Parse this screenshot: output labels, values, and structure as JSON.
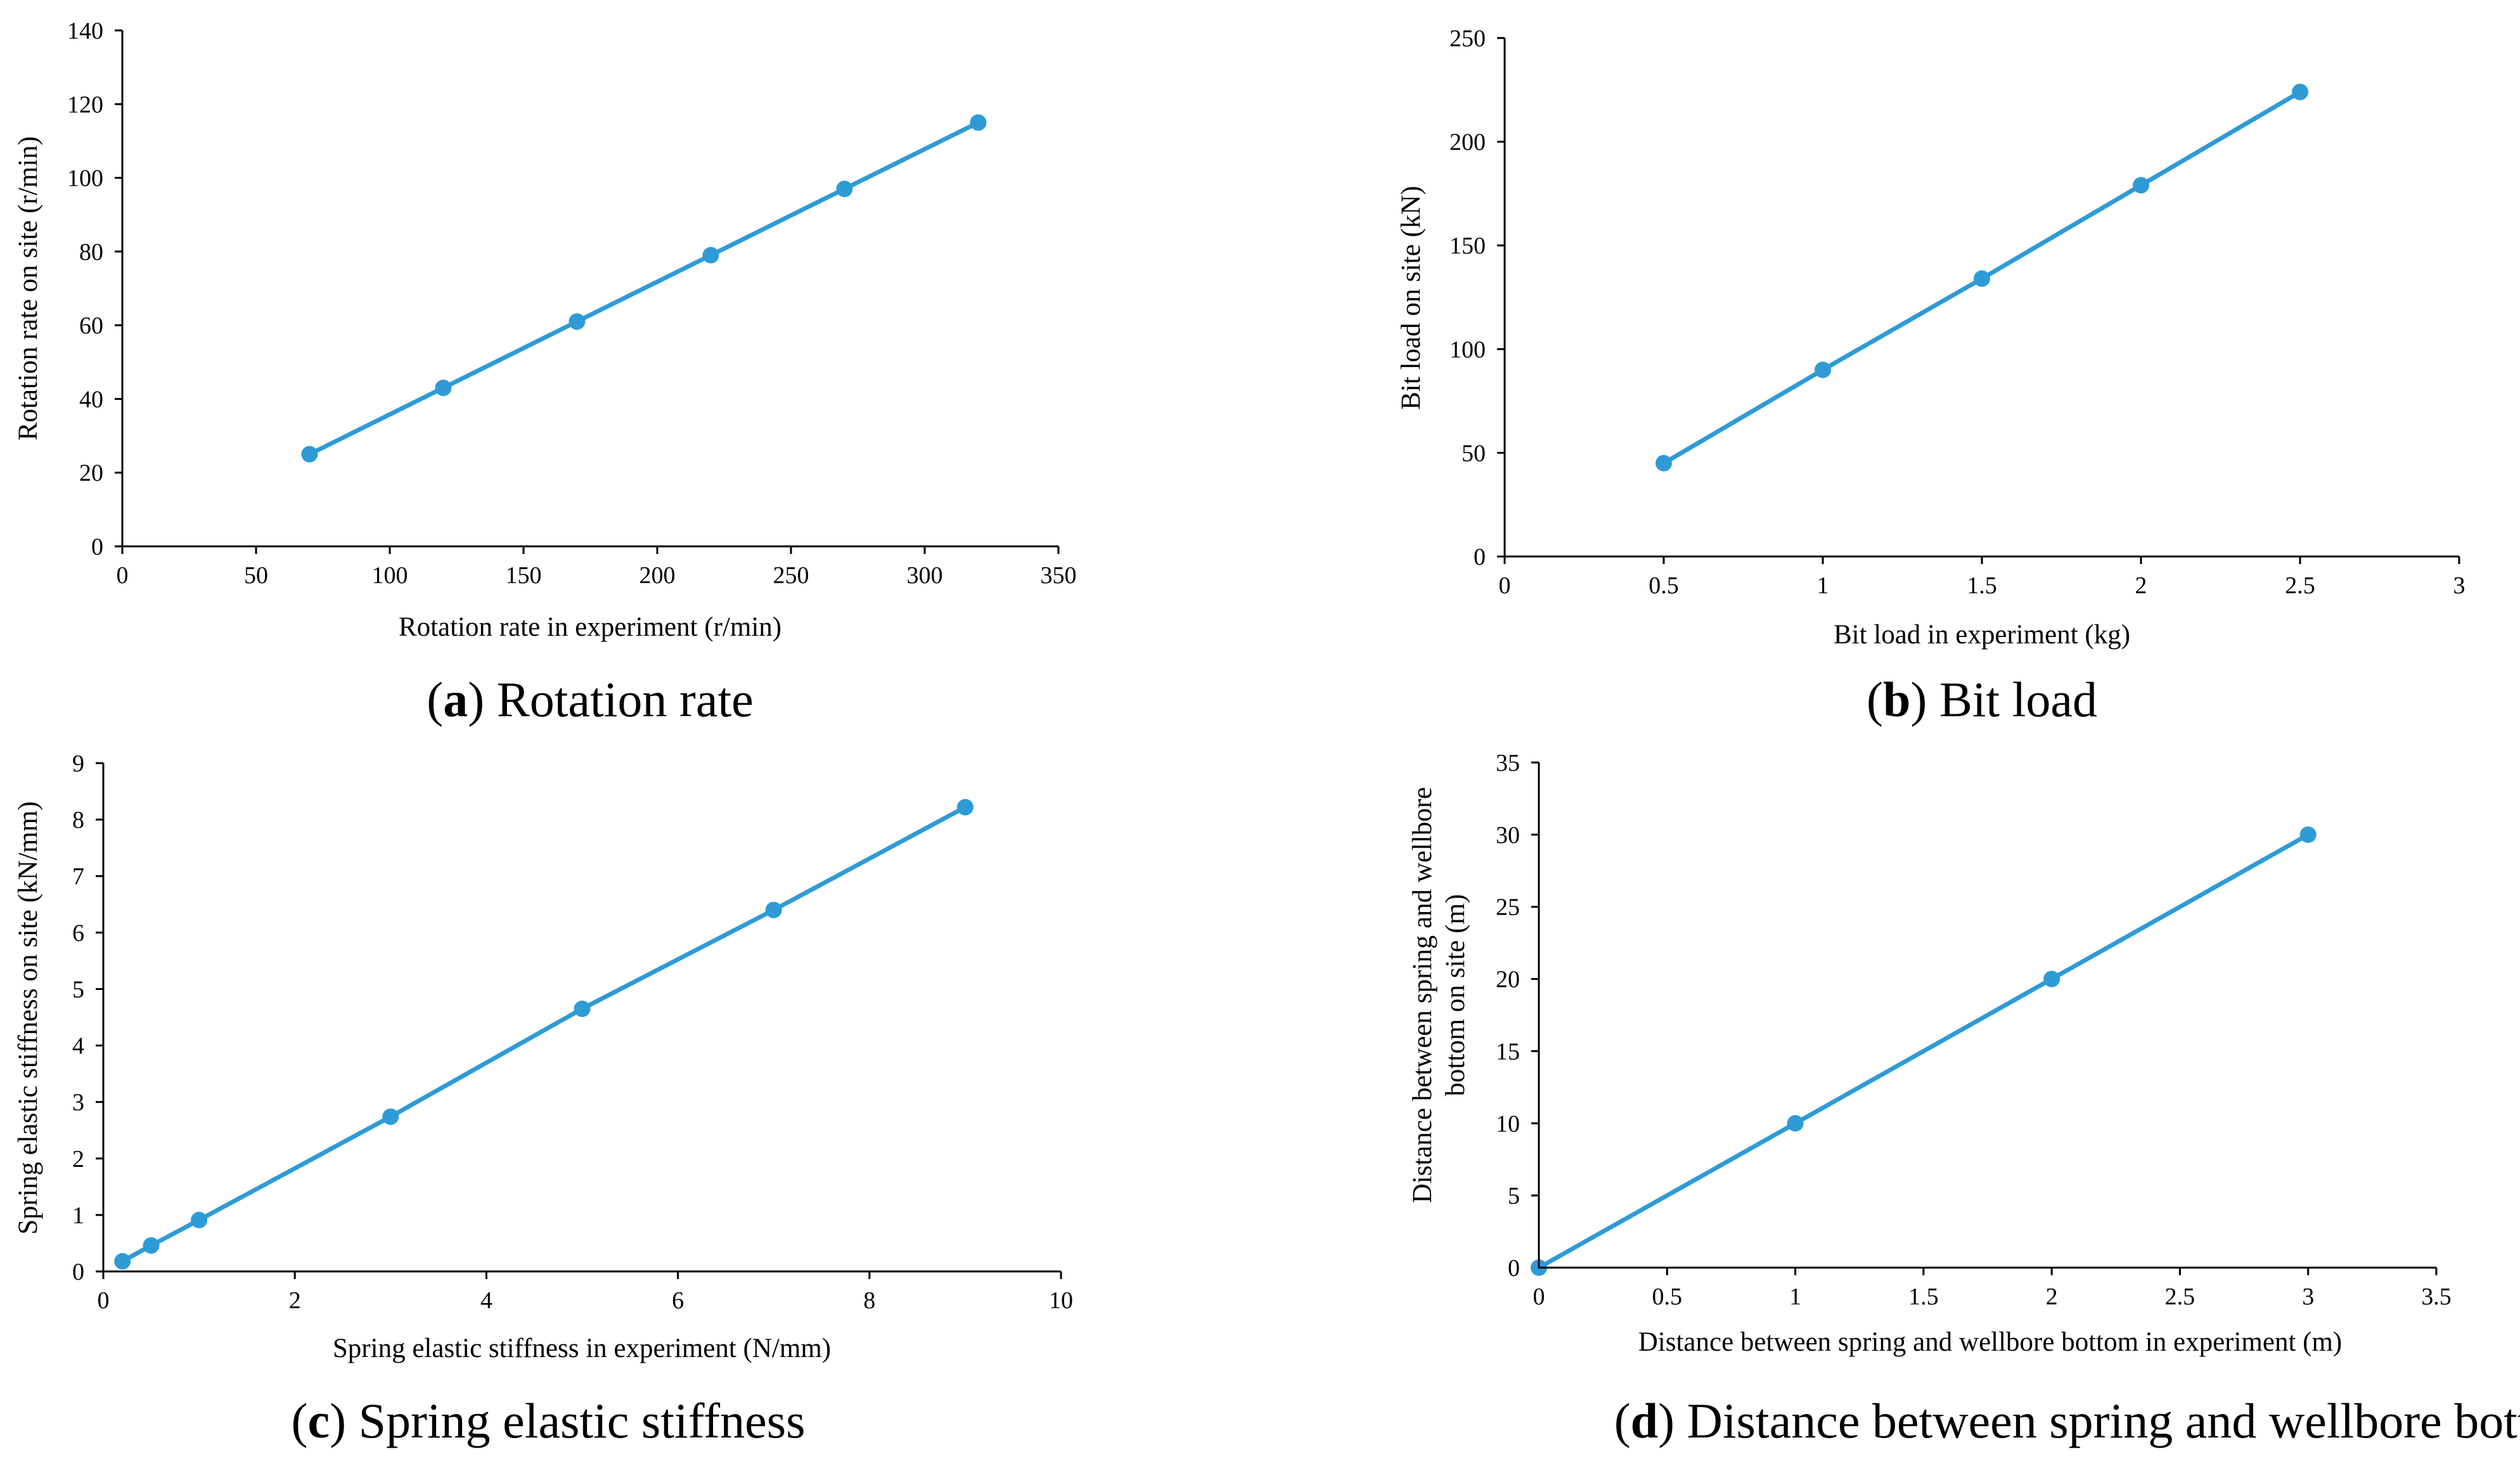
{
  "chart_data": [
    {
      "id": "a",
      "type": "line",
      "caption_letter": "a",
      "caption_text": "Rotation rate",
      "xlabel": "Rotation rate in experiment (r/min)",
      "ylabel": "Rotation rate on site (r/min)",
      "xlim": [
        0,
        350
      ],
      "ylim": [
        0,
        140
      ],
      "xticks": [
        0,
        50,
        100,
        150,
        200,
        250,
        300,
        350
      ],
      "yticks": [
        0,
        20,
        40,
        60,
        80,
        100,
        120,
        140
      ],
      "xtick_labels": [
        "0",
        "50",
        "100",
        "150",
        "200",
        "250",
        "300",
        "350"
      ],
      "ytick_labels": [
        "0",
        "20",
        "40",
        "60",
        "80",
        "100",
        "120",
        "140"
      ],
      "series": [
        {
          "name": "Rotation rate",
          "x": [
            70,
            120,
            170,
            220,
            270,
            320
          ],
          "y": [
            25,
            43,
            61,
            79,
            97,
            115
          ]
        }
      ],
      "color": "#2e9bd6"
    },
    {
      "id": "b",
      "type": "line",
      "caption_letter": "b",
      "caption_text": "Bit load",
      "xlabel": "Bit load in experiment (kg)",
      "ylabel": "Bit load on site (kN)",
      "xlim": [
        0,
        3
      ],
      "ylim": [
        0,
        250
      ],
      "xticks": [
        0,
        0.5,
        1,
        1.5,
        2,
        2.5,
        3
      ],
      "yticks": [
        0,
        50,
        100,
        150,
        200,
        250
      ],
      "xtick_labels": [
        "0",
        "0.5",
        "1",
        "1.5",
        "2",
        "2.5",
        "3"
      ],
      "ytick_labels": [
        "0",
        "50",
        "100",
        "150",
        "200",
        "250"
      ],
      "series": [
        {
          "name": "Bit load",
          "x": [
            0.5,
            1,
            1.5,
            2,
            2.5
          ],
          "y": [
            45,
            90,
            134,
            179,
            224
          ]
        }
      ],
      "color": "#2e9bd6"
    },
    {
      "id": "c",
      "type": "line",
      "caption_letter": "c",
      "caption_text": "Spring elastic stiffness",
      "xlabel": "Spring elastic stiffness in experiment (N/mm)",
      "ylabel": "Spring elastic stiffness on site (kN/mm)",
      "xlim": [
        0,
        10
      ],
      "ylim": [
        0,
        9
      ],
      "xticks": [
        0,
        2,
        4,
        6,
        8,
        10
      ],
      "yticks": [
        0,
        1,
        2,
        3,
        4,
        5,
        6,
        7,
        8,
        9
      ],
      "xtick_labels": [
        "0",
        "2",
        "4",
        "6",
        "8",
        "10"
      ],
      "ytick_labels": [
        "0",
        "1",
        "2",
        "3",
        "4",
        "5",
        "6",
        "7",
        "8",
        "9"
      ],
      "series": [
        {
          "name": "Spring elastic stiffness",
          "x": [
            0.2,
            0.5,
            1,
            3,
            5,
            7,
            9
          ],
          "y": [
            0.18,
            0.46,
            0.91,
            2.74,
            4.65,
            6.4,
            8.22
          ]
        }
      ],
      "color": "#2e9bd6"
    },
    {
      "id": "d",
      "type": "line",
      "caption_letter": "d",
      "caption_text": "Distance between spring and wellbore bottom",
      "xlabel": "Distance between spring and wellbore bottom in experiment (m)",
      "ylabel_lines": [
        "Distance between spring and wellbore",
        "bottom on site (m)"
      ],
      "xlim": [
        0,
        3.5
      ],
      "ylim": [
        0,
        35
      ],
      "xticks": [
        0,
        0.5,
        1,
        1.5,
        2,
        2.5,
        3,
        3.5
      ],
      "yticks": [
        0,
        5,
        10,
        15,
        20,
        25,
        30,
        35
      ],
      "xtick_labels": [
        "0",
        "0.5",
        "1",
        "1.5",
        "2",
        "2.5",
        "3",
        "3.5"
      ],
      "ytick_labels": [
        "0",
        "5",
        "10",
        "15",
        "20",
        "25",
        "30",
        "35"
      ],
      "series": [
        {
          "name": "Distance between spring and wellbore bottom",
          "x": [
            0,
            1,
            2,
            3
          ],
          "y": [
            0,
            10,
            20,
            30
          ]
        }
      ],
      "color": "#2e9bd6"
    }
  ]
}
